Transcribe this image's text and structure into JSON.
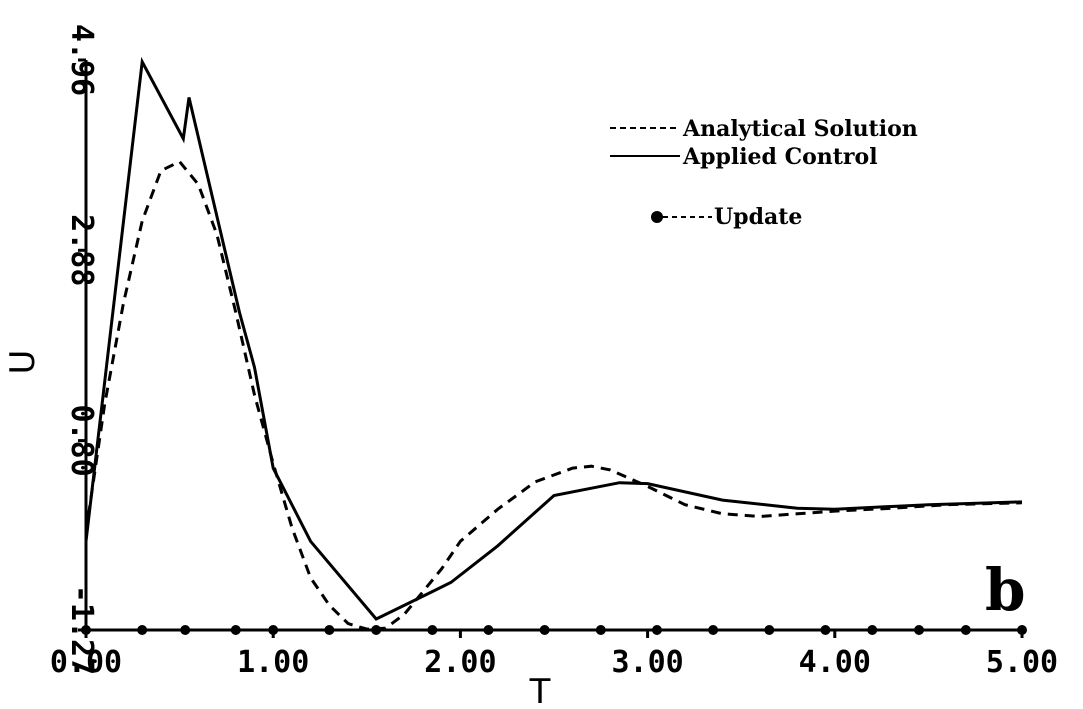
{
  "chart_data": {
    "type": "line",
    "title": "",
    "xlabel": "T",
    "ylabel": "U",
    "xlim": [
      0,
      5
    ],
    "ylim": [
      -1.27,
      4.96
    ],
    "x_ticks": [
      "0.00",
      "1.00",
      "2.00",
      "3.00",
      "4.00",
      "5.00"
    ],
    "y_ticks": [
      "-1.27",
      "0.80",
      "2.88",
      "4.96"
    ],
    "panel_label": "b",
    "legend_position": "top-right",
    "series": [
      {
        "name": "Analytical Solution",
        "style": "dashed",
        "x": [
          0.0,
          0.1,
          0.2,
          0.3,
          0.4,
          0.5,
          0.6,
          0.7,
          0.8,
          0.9,
          1.0,
          1.1,
          1.2,
          1.3,
          1.4,
          1.5,
          1.6,
          1.7,
          1.8,
          1.9,
          2.0,
          2.2,
          2.4,
          2.6,
          2.7,
          2.8,
          3.0,
          3.2,
          3.4,
          3.6,
          3.8,
          4.0,
          4.3,
          4.6,
          5.0
        ],
        "y": [
          -0.2,
          1.2,
          2.3,
          3.2,
          3.75,
          3.85,
          3.6,
          3.05,
          2.2,
          1.3,
          0.55,
          -0.15,
          -0.7,
          -1.0,
          -1.2,
          -1.26,
          -1.25,
          -1.1,
          -0.85,
          -0.6,
          -0.3,
          0.05,
          0.35,
          0.5,
          0.52,
          0.48,
          0.3,
          0.1,
          0.0,
          -0.03,
          0.0,
          0.03,
          0.06,
          0.1,
          0.12
        ]
      },
      {
        "name": "Applied Control",
        "style": "solid",
        "x": [
          0.0,
          0.3,
          0.52,
          0.55,
          0.82,
          0.9,
          1.0,
          1.2,
          1.22,
          1.55,
          1.85,
          1.95,
          2.2,
          2.5,
          2.85,
          3.0,
          3.4,
          3.8,
          4.0,
          4.5,
          5.0
        ],
        "y": [
          -0.3,
          4.94,
          4.1,
          4.55,
          2.2,
          1.6,
          0.5,
          -0.3,
          -0.35,
          -1.15,
          -0.85,
          -0.75,
          -0.35,
          0.2,
          0.34,
          0.33,
          0.15,
          0.06,
          0.05,
          0.1,
          0.13
        ]
      },
      {
        "name": "Update",
        "style": "dashed-with-dots",
        "x": [
          0.0,
          0.3,
          0.53,
          0.8,
          1.0,
          1.3,
          1.55,
          1.85,
          2.15,
          2.45,
          2.75,
          3.05,
          3.35,
          3.65,
          3.95,
          4.2,
          4.45,
          4.7,
          5.0
        ],
        "y": [
          -1.27,
          -1.27,
          -1.27,
          -1.27,
          -1.27,
          -1.27,
          -1.27,
          -1.27,
          -1.27,
          -1.27,
          -1.27,
          -1.27,
          -1.27,
          -1.27,
          -1.27,
          -1.27,
          -1.27,
          -1.27,
          -1.27
        ]
      }
    ]
  }
}
